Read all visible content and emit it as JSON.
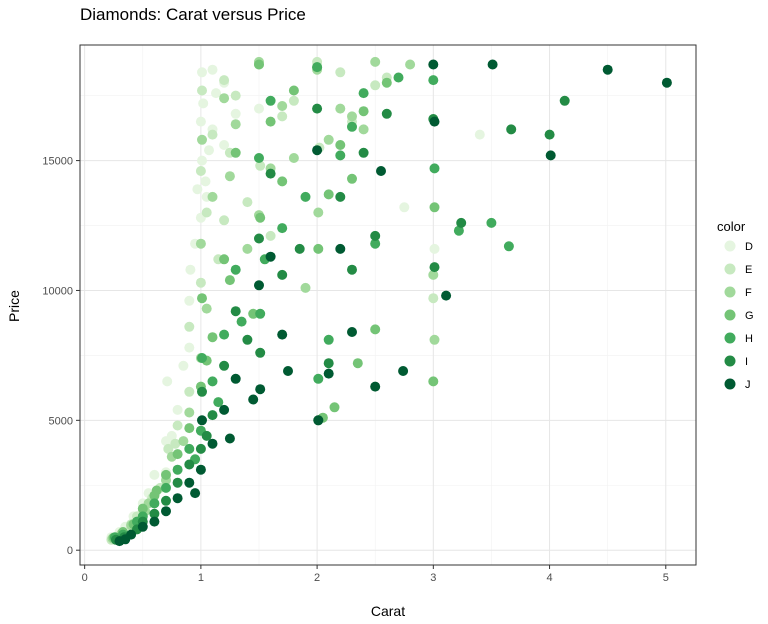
{
  "chart_data": {
    "type": "scatter",
    "title": "Diamonds: Carat versus Price",
    "xlabel": "Carat",
    "ylabel": "Price",
    "xlim": [
      -0.04,
      5.26
    ],
    "ylim": [
      -570,
      19450
    ],
    "x_ticks": [
      0,
      1,
      2,
      3,
      4,
      5
    ],
    "y_ticks": [
      0,
      5000,
      10000,
      15000
    ],
    "grid": true,
    "legend": {
      "title": "color",
      "position": "right",
      "entries": [
        "D",
        "E",
        "F",
        "G",
        "H",
        "I",
        "J"
      ]
    },
    "palette": {
      "D": "#e5f5e0",
      "E": "#c7e9c0",
      "F": "#a1d99b",
      "G": "#74c476",
      "H": "#41ab5d",
      "I": "#238b45",
      "J": "#005a32"
    },
    "series": [
      {
        "name": "D",
        "x": [
          0.23,
          0.3,
          0.35,
          0.42,
          0.5,
          0.55,
          0.7,
          0.7,
          0.71,
          0.75,
          0.8,
          0.9,
          0.9,
          0.95,
          1.0,
          1.0,
          1.01,
          1.01,
          1.02,
          1.04,
          1.05,
          1.1,
          1.1,
          1.2,
          1.2,
          1.5,
          1.5,
          2.0,
          2.75,
          3.01,
          3.4,
          0.6,
          0.85,
          0.91,
          0.97,
          1.07,
          1.13,
          1.3
        ],
        "y": [
          500,
          700,
          900,
          1300,
          1800,
          2200,
          3000,
          4200,
          6500,
          4400,
          5400,
          7800,
          9600,
          11800,
          12800,
          16500,
          15000,
          18400,
          17200,
          14200,
          13600,
          18500,
          16200,
          18000,
          15600,
          18700,
          17000,
          18700,
          13200,
          11600,
          16000,
          2900,
          7100,
          10800,
          13900,
          15400,
          17600,
          16800
        ]
      },
      {
        "name": "E",
        "x": [
          0.23,
          0.31,
          0.4,
          0.5,
          0.58,
          0.7,
          0.72,
          0.8,
          0.9,
          0.9,
          1.0,
          1.0,
          1.01,
          1.1,
          1.2,
          1.2,
          1.3,
          1.5,
          1.51,
          1.7,
          2.0,
          2.02,
          2.3,
          2.5,
          2.6,
          3.0,
          0.45,
          0.65,
          0.78,
          1.05,
          1.15,
          1.25,
          1.4,
          1.6,
          1.8,
          2.2
        ],
        "y": [
          400,
          600,
          1000,
          1500,
          2000,
          2700,
          3900,
          4800,
          6100,
          8600,
          10300,
          14600,
          17700,
          16000,
          18100,
          12700,
          17500,
          18700,
          14800,
          16700,
          18800,
          15500,
          16500,
          17900,
          18200,
          9700,
          1300,
          2400,
          4100,
          13000,
          11200,
          15300,
          13400,
          12100,
          17300,
          18400
        ]
      },
      {
        "name": "F",
        "x": [
          0.24,
          0.32,
          0.4,
          0.52,
          0.6,
          0.7,
          0.75,
          0.9,
          1.0,
          1.0,
          1.01,
          1.1,
          1.2,
          1.3,
          1.5,
          1.5,
          1.6,
          1.7,
          2.0,
          2.01,
          2.1,
          2.2,
          2.4,
          2.5,
          2.8,
          3.0,
          3.01,
          0.55,
          0.85,
          1.05,
          1.25,
          1.4,
          1.8,
          1.9,
          2.3
        ],
        "y": [
          450,
          650,
          950,
          1500,
          2100,
          2700,
          3600,
          5300,
          7400,
          11800,
          15800,
          13600,
          17400,
          16400,
          18800,
          12900,
          14700,
          17100,
          18500,
          13000,
          15800,
          17000,
          16200,
          18800,
          18700,
          10600,
          8100,
          1800,
          4200,
          9300,
          14400,
          11600,
          15100,
          10100,
          16700
        ]
      },
      {
        "name": "G",
        "x": [
          0.25,
          0.33,
          0.42,
          0.5,
          0.6,
          0.7,
          0.8,
          0.9,
          1.0,
          1.01,
          1.1,
          1.2,
          1.3,
          1.5,
          1.51,
          1.6,
          1.7,
          1.8,
          2.0,
          2.01,
          2.1,
          2.2,
          2.3,
          2.4,
          2.5,
          2.6,
          3.0,
          3.01,
          0.62,
          1.05,
          1.25,
          1.45,
          2.05,
          2.15,
          2.35
        ],
        "y": [
          480,
          700,
          1000,
          1600,
          2100,
          2900,
          3700,
          4700,
          6300,
          9700,
          8200,
          11200,
          15300,
          18700,
          12800,
          16500,
          14200,
          17700,
          18600,
          11600,
          13700,
          15600,
          14300,
          16900,
          8500,
          18000,
          6500,
          13200,
          2300,
          7300,
          10400,
          9100,
          5100,
          5500,
          7200
        ]
      },
      {
        "name": "H",
        "x": [
          0.26,
          0.33,
          0.45,
          0.5,
          0.6,
          0.7,
          0.8,
          0.9,
          1.0,
          1.01,
          1.1,
          1.2,
          1.3,
          1.5,
          1.51,
          1.6,
          1.7,
          2.0,
          2.01,
          2.1,
          2.2,
          2.3,
          2.5,
          2.7,
          3.0,
          3.01,
          3.22,
          0.95,
          1.15,
          1.35,
          1.55,
          1.9,
          2.4,
          3.5,
          3.65
        ],
        "y": [
          500,
          600,
          1100,
          1300,
          1800,
          2400,
          3100,
          3900,
          4600,
          7400,
          6500,
          8300,
          10800,
          15100,
          9100,
          17300,
          12400,
          18600,
          6600,
          8100,
          15200,
          16300,
          11800,
          18200,
          18100,
          14700,
          12300,
          3500,
          5700,
          8800,
          11200,
          13600,
          17600,
          12600,
          11700
        ]
      },
      {
        "name": "I",
        "x": [
          0.27,
          0.34,
          0.45,
          0.5,
          0.6,
          0.7,
          0.8,
          0.9,
          1.0,
          1.01,
          1.1,
          1.2,
          1.3,
          1.5,
          1.51,
          1.6,
          1.7,
          2.0,
          2.01,
          2.1,
          2.2,
          2.3,
          2.4,
          2.5,
          3.0,
          3.01,
          3.24,
          3.67,
          4.0,
          4.13,
          1.05,
          1.4,
          1.85,
          2.6
        ],
        "y": [
          400,
          500,
          800,
          1100,
          1400,
          1900,
          2600,
          3300,
          3900,
          6100,
          5200,
          7100,
          9200,
          12000,
          7600,
          14500,
          10600,
          17000,
          5000,
          7200,
          13600,
          10800,
          15300,
          12100,
          16600,
          10900,
          12600,
          16200,
          16000,
          17300,
          4400,
          8100,
          11600,
          16800
        ]
      },
      {
        "name": "J",
        "x": [
          0.3,
          0.35,
          0.4,
          0.5,
          0.6,
          0.7,
          0.8,
          0.9,
          1.0,
          1.01,
          1.1,
          1.2,
          1.3,
          1.5,
          1.51,
          1.6,
          1.7,
          2.0,
          2.01,
          2.1,
          2.2,
          2.3,
          2.5,
          2.74,
          3.0,
          3.01,
          3.11,
          3.51,
          4.01,
          4.5,
          5.01,
          0.95,
          1.25,
          1.45,
          1.75,
          2.55
        ],
        "y": [
          350,
          420,
          600,
          900,
          1100,
          1500,
          2000,
          2600,
          3100,
          5000,
          4100,
          5400,
          6600,
          10200,
          6200,
          11300,
          8300,
          15400,
          5000,
          6800,
          11600,
          8400,
          6300,
          6900,
          18700,
          16500,
          9800,
          18700,
          15200,
          18500,
          18000,
          2200,
          4300,
          5800,
          6900,
          14600
        ]
      }
    ]
  }
}
